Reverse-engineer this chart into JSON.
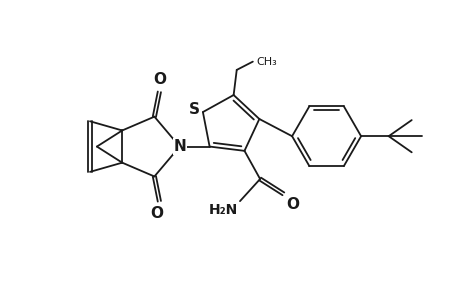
{
  "background_color": "#ffffff",
  "line_color": "#1a1a1a",
  "line_width": 1.3,
  "font_size": 10,
  "figsize": [
    4.6,
    3.0
  ],
  "dpi": 100,
  "xlim": [
    0,
    10
  ],
  "ylim": [
    0,
    6.5
  ]
}
